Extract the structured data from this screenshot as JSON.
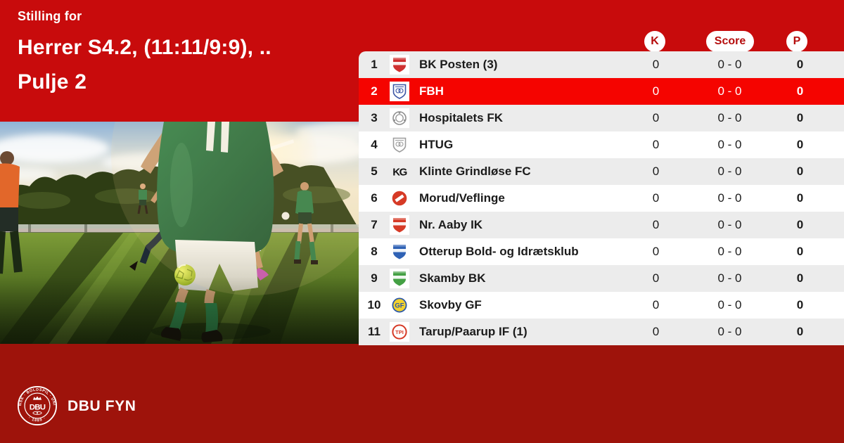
{
  "header": {
    "pretitle": "Stilling for",
    "title": "Herrer S4.2, (11:11/9:9), ..",
    "subtitle": "Pulje 2"
  },
  "columns": {
    "k": "K",
    "score": "Score",
    "p": "P"
  },
  "footer": {
    "brand": "DBU FYN",
    "seal_arc_top": "DANSK · BOLDSPIL · UNION",
    "seal_arc_bottom": "· 1889 ·",
    "seal_center": "DBU"
  },
  "colors": {
    "band_top": "#c80b0c",
    "band_bottom": "#9e130b",
    "highlight": "#f50400",
    "row_alt": "#ececec",
    "row_white": "#ffffff",
    "badge_text": "#b50d0d",
    "text_dark": "#1b1b1b"
  },
  "table": {
    "rows": [
      {
        "pos": "1",
        "team": "BK Posten (3)",
        "k": "0",
        "score": "0 - 0",
        "p": "0",
        "highlighted": false,
        "crest": {
          "kind": "shield",
          "c1": "#cf3030",
          "c2": "#ffffff",
          "label": "",
          "tile": true
        }
      },
      {
        "pos": "2",
        "team": "FBH",
        "k": "0",
        "score": "0 - 0",
        "p": "0",
        "highlighted": true,
        "crest": {
          "kind": "shield-outline",
          "c1": "#3b55a5",
          "c2": "#ffffff",
          "label": "",
          "tile": true
        }
      },
      {
        "pos": "3",
        "team": "Hospitalets FK",
        "k": "0",
        "score": "0 - 0",
        "p": "0",
        "highlighted": false,
        "crest": {
          "kind": "emblem",
          "c1": "#8f8f8f",
          "c2": "#ffffff",
          "label": "",
          "tile": true
        }
      },
      {
        "pos": "4",
        "team": "HTUG",
        "k": "0",
        "score": "0 - 0",
        "p": "0",
        "highlighted": false,
        "crest": {
          "kind": "shield-outline",
          "c1": "#9d9d9d",
          "c2": "#ffffff",
          "label": "",
          "tile": true
        }
      },
      {
        "pos": "5",
        "team": "Klinte Grindløse FC",
        "k": "0",
        "score": "0 - 0",
        "p": "0",
        "highlighted": false,
        "crest": {
          "kind": "monogram",
          "c1": "#141414",
          "c2": "#141414",
          "label": "KG",
          "tile": false
        }
      },
      {
        "pos": "6",
        "team": "Morud/Veflinge",
        "k": "0",
        "score": "0 - 0",
        "p": "0",
        "highlighted": false,
        "crest": {
          "kind": "circle-band",
          "c1": "#d63a26",
          "c2": "#ffffff",
          "label": "",
          "tile": true
        }
      },
      {
        "pos": "7",
        "team": "Nr. Aaby IK",
        "k": "0",
        "score": "0 - 0",
        "p": "0",
        "highlighted": false,
        "crest": {
          "kind": "shield",
          "c1": "#d63a26",
          "c2": "#ffffff",
          "label": "",
          "tile": true
        }
      },
      {
        "pos": "8",
        "team": "Otterup Bold- og Idrætsklub",
        "k": "0",
        "score": "0 - 0",
        "p": "0",
        "highlighted": false,
        "crest": {
          "kind": "shield",
          "c1": "#2f62b5",
          "c2": "#ffffff",
          "label": "",
          "tile": true
        }
      },
      {
        "pos": "9",
        "team": "Skamby BK",
        "k": "0",
        "score": "0 - 0",
        "p": "0",
        "highlighted": false,
        "crest": {
          "kind": "shield",
          "c1": "#44a044",
          "c2": "#ffffff",
          "label": "",
          "tile": true
        }
      },
      {
        "pos": "10",
        "team": "Skovby GF",
        "k": "0",
        "score": "0 - 0",
        "p": "0",
        "highlighted": false,
        "crest": {
          "kind": "circle-label",
          "c1": "#f2d12e",
          "c2": "#2b58a8",
          "label": "GF",
          "tile": true
        }
      },
      {
        "pos": "11",
        "team": "Tarup/Paarup IF (1)",
        "k": "0",
        "score": "0 - 0",
        "p": "0",
        "highlighted": false,
        "crest": {
          "kind": "ring-label",
          "c1": "#d63a26",
          "c2": "#ffffff",
          "label": "TPI",
          "tile": true
        }
      }
    ]
  }
}
